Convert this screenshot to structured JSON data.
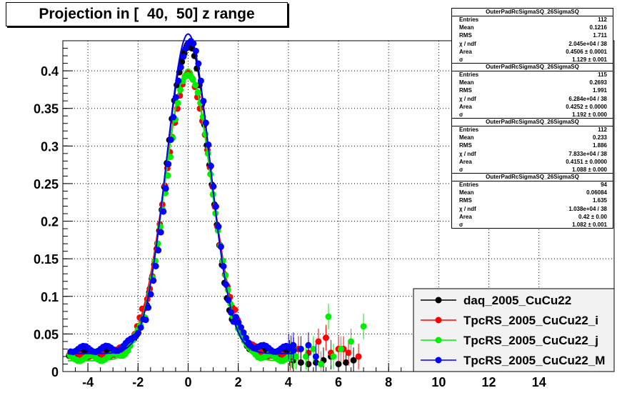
{
  "title": "Projection in [  40,  50] z range",
  "stats": [
    {
      "name": "OuterPadRcSigmaSQ_26SigmaSQ",
      "rows": [
        [
          "Entries",
          "112"
        ],
        [
          "Mean",
          "0.1216"
        ],
        [
          "RMS",
          "1.711"
        ],
        [
          "χ  / ndf",
          "2.045e+04 / 38"
        ],
        [
          "Area",
          "0.4506 ± 0.0001"
        ],
        [
          "σ",
          "1.129 ± 0.001"
        ]
      ]
    },
    {
      "name": "OuterPadRcSigmaSQ_26SigmaSQ",
      "rows": [
        [
          "Entries",
          "115"
        ],
        [
          "Mean",
          "0.2693"
        ],
        [
          "RMS",
          "1.991"
        ],
        [
          "χ  / ndf",
          "6.284e+04 / 38"
        ],
        [
          "Area",
          "0.4252 ± 0.0000"
        ],
        [
          "σ",
          "1.192 ± 0.000"
        ]
      ]
    },
    {
      "name": "OuterPadRcSigmaSQ_26SigmaSQ",
      "rows": [
        [
          "Entries",
          "112"
        ],
        [
          "Mean",
          "0.233"
        ],
        [
          "RMS",
          "1.886"
        ],
        [
          "χ  / ndf",
          "7.833e+04 / 38"
        ],
        [
          "Area",
          "0.4151 ± 0.0000"
        ],
        [
          "σ",
          "1.088 ± 0.000"
        ]
      ]
    },
    {
      "name": "OuterPadRcSigmaSQ_26SigmaSQ",
      "rows": [
        [
          "Entries",
          "94"
        ],
        [
          "Mean",
          "0.06084"
        ],
        [
          "RMS",
          "1.635"
        ],
        [
          "χ  / ndf",
          "1.038e+04 / 38"
        ],
        [
          "Area",
          "0.42 ± 0.00"
        ],
        [
          "σ",
          "1.082 ± 0.001"
        ]
      ]
    }
  ],
  "chart_data": {
    "type": "scatter",
    "title": "Projection in [  40,  50] z range",
    "xlim": [
      -5,
      17
    ],
    "ylim": [
      0,
      0.44
    ],
    "grid": true,
    "legend_position": "bottom-right",
    "x_ticks": [
      "-4",
      "-2",
      "0",
      "2",
      "4",
      "6",
      "8",
      "10",
      "12",
      "14"
    ],
    "y_ticks": [
      "0",
      "0.05",
      "0.1",
      "0.15",
      "0.2",
      "0.25",
      "0.3",
      "0.35",
      "0.4"
    ],
    "series": [
      {
        "name": "daq_2005_CuCu22",
        "color": "#000000",
        "amp": 0.42,
        "sigma": 0.88,
        "base": 0.025,
        "tail_x": [
          4.2,
          4.5,
          4.8,
          5.1,
          5.4,
          5.7,
          6.0,
          6.3,
          6.6
        ],
        "tail_y": [
          0.015,
          0.012,
          0.01,
          0.012,
          0.015,
          0.02,
          0.01,
          0.012,
          0.015
        ]
      },
      {
        "name": "TpcRS_2005_CuCu22_i",
        "color": "#ff0000",
        "amp": 0.383,
        "sigma": 0.95,
        "base": 0.022,
        "tail_x": [
          4.4,
          4.8,
          5.2,
          5.5,
          5.7,
          6.0,
          6.2,
          6.4,
          6.8
        ],
        "tail_y": [
          0.03,
          0.025,
          0.04,
          0.045,
          0.025,
          0.03,
          0.03,
          0.025,
          0.02
        ]
      },
      {
        "name": "TpcRS_2005_CuCu22_j",
        "color": "#00ee00",
        "amp": 0.388,
        "sigma": 0.93,
        "base": 0.018,
        "tail_x": [
          4.3,
          4.7,
          5.0,
          5.3,
          5.6,
          5.8,
          6.1,
          6.5,
          7.0
        ],
        "tail_y": [
          0.02,
          0.02,
          0.03,
          0.01,
          0.073,
          0.02,
          0.03,
          0.04,
          0.06
        ]
      },
      {
        "name": "TpcRS_2005_CuCu22_M",
        "color": "#0000ff",
        "amp": 0.425,
        "sigma": 0.86,
        "base": 0.03,
        "tail_x": [
          4.2,
          4.5,
          4.8,
          5.1
        ],
        "tail_y": [
          0.035,
          0.03,
          0.035,
          0.02
        ]
      }
    ]
  }
}
